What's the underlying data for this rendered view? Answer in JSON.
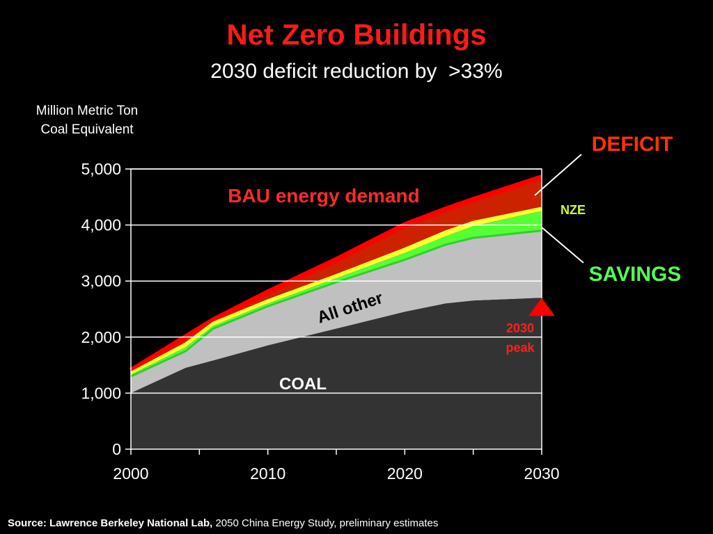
{
  "slide": {
    "title": "Net Zero Buildings",
    "subtitle": "2030 deficit reduction by  >33%",
    "ylabel_line1": "Million Metric Ton",
    "ylabel_line2": "Coal Equivalent",
    "source_lead": "Source:  Lawrence Berkeley National Lab,",
    "source_rest": " 2050 China Energy Study, preliminary estimates"
  },
  "colors": {
    "background": "#000000",
    "coal": "#333333",
    "all_other": "#c0c0c0",
    "savings": "#55ff33",
    "nze": "#ffff33",
    "deficit": "#cc2200",
    "bau": "#ff0000",
    "grid": "#ffffff"
  },
  "chart_data": {
    "type": "area",
    "stacked": true,
    "x": [
      2000,
      2004,
      2006,
      2010,
      2015,
      2020,
      2023,
      2025,
      2030
    ],
    "xticks": [
      2000,
      2010,
      2020,
      2030
    ],
    "xlim": [
      2000,
      2030
    ],
    "ylim": [
      0,
      5000
    ],
    "yticks": [
      0,
      1000,
      2000,
      3000,
      4000,
      5000
    ],
    "ytick_labels": [
      "0",
      "1,000",
      "2,000",
      "3,000",
      "4,000",
      "5,000"
    ],
    "grid": true,
    "series": [
      {
        "name": "COAL",
        "values": [
          1000,
          1450,
          1580,
          1850,
          2150,
          2450,
          2600,
          2650,
          2700
        ]
      },
      {
        "name": "All other",
        "values": [
          1300,
          1750,
          2150,
          2550,
          2980,
          3380,
          3650,
          3770,
          3900
        ]
      },
      {
        "values": [
          1330,
          1820,
          2200,
          2600,
          3050,
          3500,
          3800,
          3980,
          4250
        ]
      },
      {
        "values": [
          1360,
          1880,
          2250,
          2650,
          3100,
          3570,
          3880,
          4050,
          4300
        ]
      },
      {
        "name": "BAU energy demand",
        "values": [
          1400,
          2000,
          2300,
          2800,
          3380,
          4000,
          4280,
          4450,
          4850
        ]
      }
    ],
    "labels": {
      "bau": "BAU energy demand",
      "all_other": "All other",
      "coal": "COAL",
      "deficit": "DEFICIT",
      "nze": "NZE",
      "savings": "SAVINGS",
      "peak_line1": "2030",
      "peak_line2": "peak"
    },
    "peak_year": 2030
  }
}
